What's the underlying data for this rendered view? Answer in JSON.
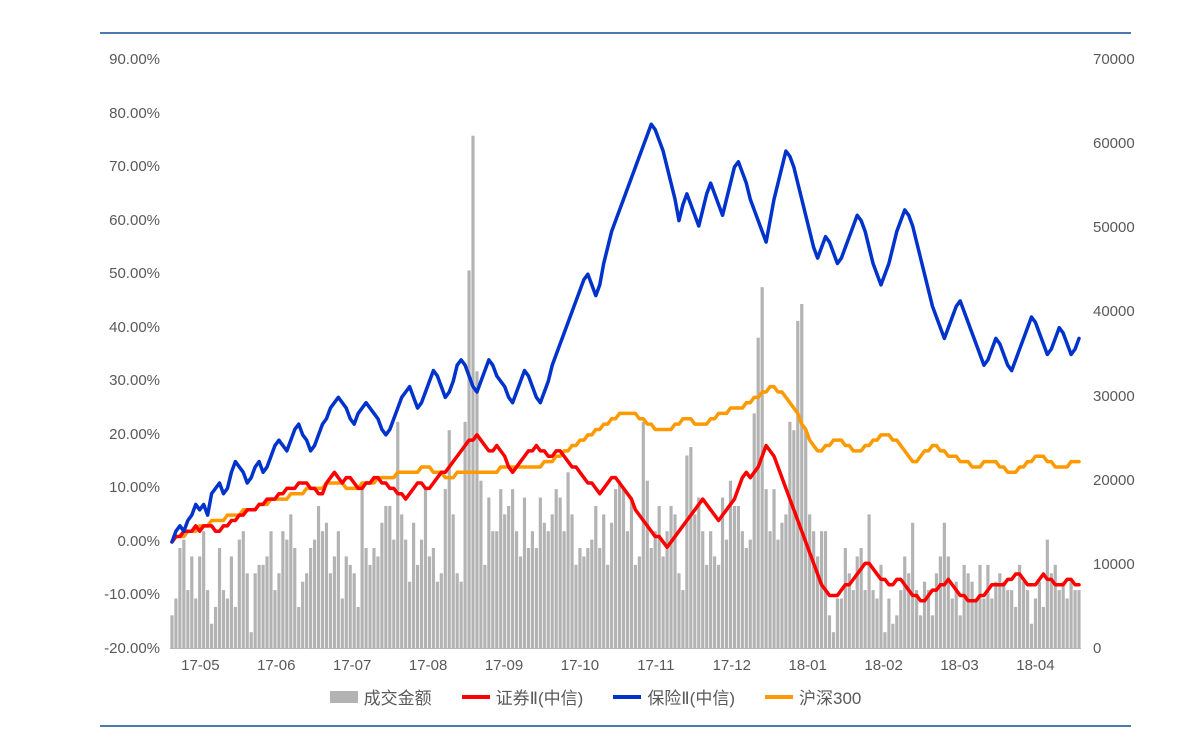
{
  "chart": {
    "type": "combo-line-bar-dual-axis",
    "background_color": "#ffffff",
    "border_rule_color": "#4a7ab0",
    "axis_text_color": "#595959",
    "label_fontsize": 15,
    "legend_fontsize": 17,
    "line_width": 3.5,
    "bar_width_ratio": 0.32,
    "y_left": {
      "min": -20,
      "max": 90,
      "step": 10,
      "suffix": "%",
      "decimals": 2,
      "ticks": [
        "-20.00%",
        "-10.00%",
        "0.00%",
        "10.00%",
        "20.00%",
        "30.00%",
        "40.00%",
        "50.00%",
        "60.00%",
        "70.00%",
        "80.00%",
        "90.00%"
      ]
    },
    "y_right": {
      "min": 0,
      "max": 70000,
      "step": 10000,
      "ticks": [
        "0",
        "10000",
        "20000",
        "30000",
        "40000",
        "50000",
        "60000",
        "70000"
      ]
    },
    "x_labels": [
      "17-05",
      "17-06",
      "17-07",
      "17-08",
      "17-09",
      "17-10",
      "17-11",
      "17-12",
      "18-01",
      "18-02",
      "18-03",
      "18-04"
    ],
    "legend": {
      "volume": "成交金额",
      "securities": "证券Ⅱ(中信)",
      "insurance": "保险Ⅱ(中信)",
      "csi300": "沪深300"
    },
    "colors": {
      "volume": "#b3b3b3",
      "securities": "#ff0000",
      "insurance": "#0033cc",
      "csi300": "#ff9900"
    },
    "series": {
      "volume_right_axis": [
        4000,
        6000,
        12000,
        13000,
        7000,
        11000,
        6000,
        11000,
        14000,
        7000,
        3000,
        5000,
        12000,
        7000,
        6000,
        11000,
        5000,
        13000,
        14000,
        9000,
        2000,
        9000,
        10000,
        10000,
        11000,
        14000,
        7000,
        9000,
        14000,
        13000,
        16000,
        12000,
        5000,
        8000,
        9000,
        12000,
        13000,
        17000,
        14000,
        15000,
        9000,
        11000,
        14000,
        6000,
        11000,
        10000,
        9000,
        5000,
        19000,
        12000,
        10000,
        12000,
        11000,
        15000,
        17000,
        17000,
        13000,
        27000,
        16000,
        13000,
        8000,
        15000,
        10000,
        13000,
        19000,
        11000,
        12000,
        8000,
        9000,
        19000,
        26000,
        16000,
        9000,
        8000,
        27000,
        45000,
        61000,
        33000,
        20000,
        10000,
        18000,
        14000,
        14000,
        19000,
        16000,
        17000,
        19000,
        14000,
        11000,
        18000,
        12000,
        14000,
        12000,
        18000,
        15000,
        14000,
        16000,
        19000,
        18000,
        14000,
        21000,
        16000,
        10000,
        12000,
        11000,
        12000,
        13000,
        17000,
        12000,
        16000,
        10000,
        15000,
        19000,
        20000,
        19000,
        14000,
        18000,
        10000,
        11000,
        27000,
        20000,
        12000,
        14000,
        17000,
        11000,
        14000,
        17000,
        16000,
        9000,
        7000,
        23000,
        24000,
        16000,
        18000,
        14000,
        10000,
        14000,
        11000,
        10000,
        18000,
        13000,
        20000,
        17000,
        17000,
        14000,
        12000,
        13000,
        28000,
        37000,
        43000,
        19000,
        14000,
        19000,
        13000,
        15000,
        16000,
        27000,
        26000,
        39000,
        41000,
        26000,
        16000,
        14000,
        11000,
        14000,
        14000,
        4000,
        2000,
        6000,
        6000,
        12000,
        9000,
        7000,
        11000,
        12000,
        7000,
        16000,
        7000,
        6000,
        10000,
        2000,
        6000,
        3000,
        4000,
        7000,
        11000,
        9000,
        15000,
        7000,
        4000,
        8000,
        7000,
        4000,
        9000,
        11000,
        15000,
        11000,
        6000,
        8000,
        4000,
        10000,
        9000,
        8000,
        6000,
        10000,
        6000,
        10000,
        6000,
        8000,
        9000,
        8000,
        7000,
        7000,
        5000,
        10000,
        8000,
        7000,
        3000,
        6000,
        8000,
        5000,
        13000,
        9000,
        10000,
        7000,
        8000,
        6000,
        8000,
        7000,
        7000
      ],
      "securities_pct": [
        0,
        1,
        1,
        2,
        2,
        2,
        3,
        2,
        3,
        3,
        3,
        2,
        2,
        3,
        3,
        4,
        4,
        5,
        5,
        6,
        6,
        6,
        7,
        7,
        8,
        8,
        8,
        9,
        9,
        10,
        10,
        10,
        11,
        11,
        11,
        10,
        10,
        9,
        9,
        11,
        12,
        13,
        12,
        11,
        12,
        12,
        11,
        10,
        10,
        11,
        11,
        12,
        12,
        11,
        11,
        10,
        10,
        9,
        9,
        8,
        9,
        10,
        11,
        11,
        10,
        10,
        11,
        12,
        13,
        13,
        14,
        15,
        16,
        17,
        18,
        19,
        19,
        20,
        19,
        18,
        17,
        17,
        18,
        17,
        16,
        14,
        13,
        14,
        15,
        16,
        17,
        17,
        18,
        17,
        17,
        16,
        16,
        17,
        17,
        16,
        15,
        14,
        14,
        13,
        12,
        11,
        11,
        10,
        9,
        10,
        11,
        12,
        12,
        11,
        10,
        9,
        8,
        6,
        5,
        4,
        3,
        2,
        1,
        1,
        0,
        -1,
        0,
        1,
        2,
        3,
        4,
        5,
        6,
        7,
        8,
        7,
        6,
        5,
        4,
        5,
        6,
        7,
        8,
        10,
        12,
        13,
        12,
        13,
        14,
        16,
        18,
        17,
        16,
        14,
        12,
        10,
        8,
        6,
        4,
        2,
        0,
        -2,
        -4,
        -6,
        -8,
        -9,
        -10,
        -10,
        -10,
        -9,
        -8,
        -8,
        -7,
        -6,
        -5,
        -4,
        -4,
        -5,
        -6,
        -7,
        -7,
        -8,
        -8,
        -7,
        -7,
        -8,
        -9,
        -10,
        -10,
        -11,
        -11,
        -10,
        -9,
        -9,
        -8,
        -8,
        -7,
        -8,
        -9,
        -10,
        -10,
        -11,
        -11,
        -11,
        -10,
        -10,
        -9,
        -8,
        -8,
        -8,
        -8,
        -7,
        -7,
        -6,
        -6,
        -7,
        -8,
        -8,
        -8,
        -7,
        -6,
        -7,
        -7,
        -8,
        -8,
        -8,
        -7,
        -7,
        -8,
        -8
      ],
      "insurance_pct": [
        0,
        2,
        3,
        2,
        4,
        5,
        7,
        6,
        7,
        5,
        9,
        10,
        11,
        9,
        10,
        13,
        15,
        14,
        13,
        11,
        12,
        14,
        15,
        13,
        14,
        16,
        18,
        19,
        18,
        17,
        19,
        21,
        22,
        20,
        19,
        17,
        18,
        20,
        22,
        23,
        25,
        26,
        27,
        26,
        25,
        23,
        22,
        24,
        25,
        26,
        25,
        24,
        23,
        21,
        20,
        21,
        23,
        25,
        27,
        28,
        29,
        27,
        25,
        26,
        28,
        30,
        32,
        31,
        29,
        27,
        28,
        30,
        33,
        34,
        33,
        31,
        29,
        28,
        30,
        32,
        34,
        33,
        31,
        30,
        29,
        27,
        26,
        28,
        30,
        32,
        31,
        29,
        27,
        26,
        28,
        30,
        33,
        35,
        37,
        39,
        41,
        43,
        45,
        47,
        49,
        50,
        48,
        46,
        48,
        52,
        55,
        58,
        60,
        62,
        64,
        66,
        68,
        70,
        72,
        74,
        76,
        78,
        77,
        75,
        73,
        70,
        67,
        64,
        60,
        63,
        65,
        63,
        61,
        59,
        62,
        65,
        67,
        65,
        63,
        61,
        64,
        67,
        70,
        71,
        69,
        67,
        64,
        62,
        60,
        58,
        56,
        60,
        64,
        67,
        70,
        73,
        72,
        70,
        67,
        64,
        61,
        58,
        55,
        53,
        55,
        57,
        56,
        54,
        52,
        53,
        55,
        57,
        59,
        61,
        60,
        58,
        55,
        52,
        50,
        48,
        50,
        52,
        55,
        58,
        60,
        62,
        61,
        59,
        56,
        53,
        50,
        47,
        44,
        42,
        40,
        38,
        40,
        42,
        44,
        45,
        43,
        41,
        39,
        37,
        35,
        33,
        34,
        36,
        38,
        37,
        35,
        33,
        32,
        34,
        36,
        38,
        40,
        42,
        41,
        39,
        37,
        35,
        36,
        38,
        40,
        39,
        37,
        35,
        36,
        38
      ],
      "csi300_pct": [
        0,
        1,
        1,
        1,
        2,
        2,
        2,
        3,
        3,
        3,
        4,
        4,
        4,
        4,
        5,
        5,
        5,
        5,
        6,
        6,
        6,
        6,
        7,
        7,
        7,
        8,
        8,
        8,
        8,
        8,
        9,
        9,
        9,
        9,
        10,
        10,
        10,
        10,
        10,
        11,
        11,
        11,
        11,
        11,
        10,
        10,
        10,
        10,
        11,
        11,
        11,
        11,
        12,
        12,
        12,
        12,
        12,
        13,
        13,
        13,
        13,
        13,
        13,
        14,
        14,
        14,
        13,
        13,
        13,
        12,
        12,
        12,
        13,
        13,
        13,
        13,
        13,
        13,
        13,
        13,
        13,
        13,
        13,
        14,
        14,
        14,
        14,
        14,
        14,
        14,
        14,
        14,
        14,
        14,
        15,
        15,
        15,
        16,
        16,
        17,
        17,
        18,
        18,
        19,
        19,
        20,
        20,
        21,
        21,
        22,
        22,
        23,
        23,
        24,
        24,
        24,
        24,
        24,
        23,
        23,
        22,
        22,
        21,
        21,
        21,
        21,
        21,
        22,
        22,
        23,
        23,
        23,
        22,
        22,
        22,
        22,
        23,
        23,
        24,
        24,
        24,
        25,
        25,
        25,
        25,
        26,
        26,
        27,
        27,
        28,
        28,
        29,
        29,
        28,
        28,
        27,
        26,
        25,
        24,
        22,
        21,
        19,
        18,
        17,
        17,
        18,
        18,
        19,
        19,
        19,
        18,
        18,
        17,
        17,
        17,
        18,
        18,
        19,
        19,
        20,
        20,
        20,
        19,
        19,
        18,
        17,
        16,
        15,
        15,
        16,
        17,
        17,
        18,
        18,
        17,
        17,
        16,
        16,
        16,
        15,
        15,
        15,
        14,
        14,
        14,
        15,
        15,
        15,
        15,
        14,
        14,
        13,
        13,
        13,
        14,
        14,
        15,
        15,
        16,
        16,
        16,
        15,
        15,
        14,
        14,
        14,
        14,
        15,
        15,
        15
      ]
    }
  }
}
